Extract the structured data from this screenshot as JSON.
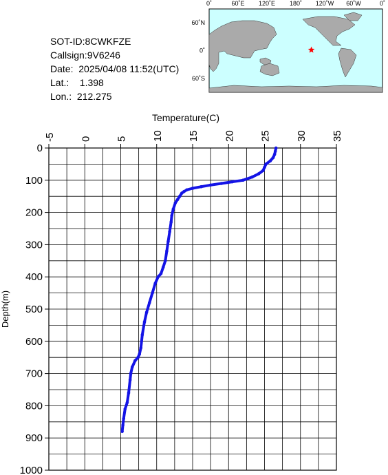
{
  "info": {
    "sot_id": "SOT-ID:8CWKFZE",
    "callsign": "Callsign:9V6246",
    "date": "Date:  2025/04/08 11:52(UTC)",
    "lat": "Lat.:    1.398",
    "lon": "Lon.:  212.275"
  },
  "map": {
    "lon_labels": [
      "0˚",
      "60˚E",
      "120˚E",
      "180˚",
      "120˚W",
      "60˚W",
      "0˚"
    ],
    "lat_labels": [
      "60˚N",
      "0˚",
      "60˚S"
    ],
    "ocean_color": "#ccffff",
    "land_color": "#aaaaaa",
    "marker": {
      "lon": 212.275,
      "lat": 1.398,
      "color": "#ff0000",
      "symbol": "star"
    }
  },
  "chart_data": {
    "type": "line",
    "xlabel": "Temperature(C)",
    "ylabel": "Depth(m)",
    "xlim": [
      -5,
      35
    ],
    "ylim": [
      0,
      1000
    ],
    "y_inverted": true,
    "x_axis_position": "top",
    "xticks": [
      -5,
      0,
      5,
      10,
      15,
      20,
      25,
      30,
      35
    ],
    "yticks": [
      0,
      100,
      200,
      300,
      400,
      500,
      600,
      700,
      800,
      900,
      1000
    ],
    "grid": true,
    "series_color": "#1414e6",
    "profile": {
      "temperature": [
        26.6,
        26.5,
        26.4,
        26.2,
        25.8,
        25.2,
        25.0,
        24.8,
        24.2,
        23.3,
        22.0,
        20.5,
        19.0,
        17.5,
        16.2,
        15.0,
        14.2,
        13.8,
        13.5,
        13.2,
        12.9,
        12.6,
        12.3,
        12.1,
        12.0,
        11.8,
        11.6,
        11.4,
        11.2,
        10.9,
        10.6,
        10.2,
        9.8,
        9.4,
        9.0,
        8.6,
        8.3,
        8.0,
        7.8,
        7.6,
        7.4,
        7.0,
        6.6,
        6.4,
        6.3,
        6.1,
        5.9,
        5.6,
        5.4,
        5.3,
        5.2
      ],
      "depth": [
        0,
        10,
        20,
        30,
        40,
        50,
        60,
        70,
        80,
        90,
        100,
        105,
        110,
        115,
        120,
        125,
        130,
        135,
        140,
        150,
        160,
        170,
        190,
        210,
        230,
        260,
        290,
        320,
        350,
        370,
        390,
        400,
        420,
        450,
        480,
        510,
        540,
        580,
        620,
        640,
        650,
        660,
        680,
        700,
        720,
        760,
        790,
        810,
        840,
        860,
        880
      ]
    }
  }
}
